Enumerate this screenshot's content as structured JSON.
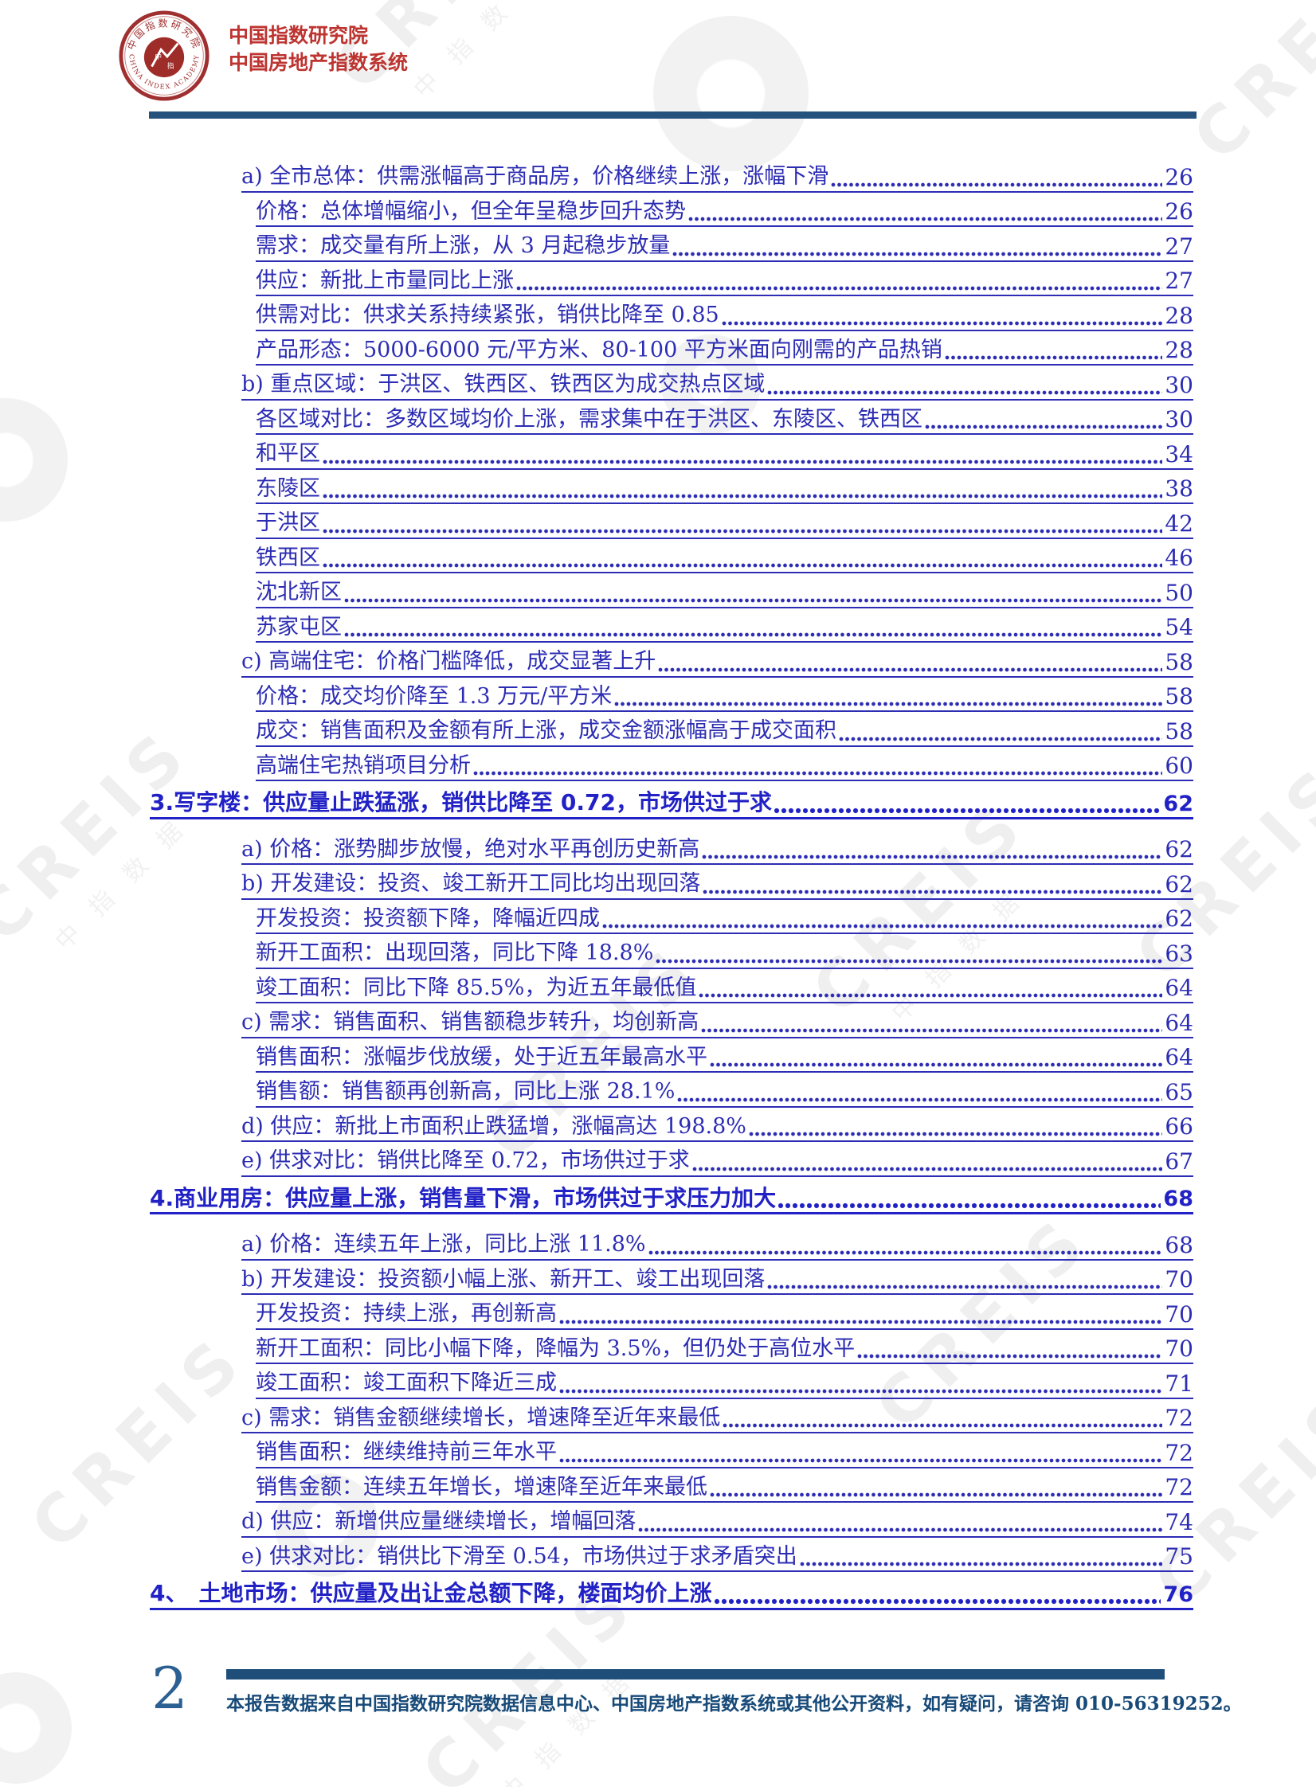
{
  "header": {
    "org_name": "中国指数研究院",
    "system_name": "中国房地产指数系统",
    "logo": {
      "arc_top_text": "中国指数研究院",
      "arc_bottom_text": "CHINA INDEX ACADEMY",
      "center_char_1": "中",
      "center_char_2": "指"
    }
  },
  "toc": {
    "entries": [
      {
        "level": "item",
        "text": "a) 全市总体：供需涨幅高于商品房，价格继续上涨，涨幅下滑",
        "page": "26"
      },
      {
        "level": "sub",
        "text": "价格：总体增幅缩小，但全年呈稳步回升态势",
        "page": "26"
      },
      {
        "level": "sub",
        "text": "需求：成交量有所上涨，从 3 月起稳步放量",
        "page": "27"
      },
      {
        "level": "sub",
        "text": "供应：新批上市量同比上涨",
        "page": "27"
      },
      {
        "level": "sub",
        "text": "供需对比：供求关系持续紧张，销供比降至 0.85",
        "page": "28"
      },
      {
        "level": "sub",
        "text": "产品形态：5000-6000 元/平方米、80-100 平方米面向刚需的产品热销",
        "page": "28"
      },
      {
        "level": "item",
        "text": "b) 重点区域：于洪区、铁西区、铁西区为成交热点区域",
        "page": "30"
      },
      {
        "level": "sub",
        "text": "各区域对比：多数区域均价上涨，需求集中在于洪区、东陵区、铁西区",
        "page": "30"
      },
      {
        "level": "sub",
        "text": "和平区",
        "page": "34"
      },
      {
        "level": "sub",
        "text": "东陵区",
        "page": "38"
      },
      {
        "level": "sub",
        "text": "于洪区",
        "page": "42"
      },
      {
        "level": "sub",
        "text": "铁西区",
        "page": "46"
      },
      {
        "level": "sub",
        "text": "沈北新区",
        "page": "50"
      },
      {
        "level": "sub",
        "text": "苏家屯区",
        "page": "54"
      },
      {
        "level": "item",
        "text": "c) 高端住宅：价格门槛降低，成交显著上升",
        "page": "58"
      },
      {
        "level": "sub",
        "text": "价格：成交均价降至 1.3 万元/平方米",
        "page": "58"
      },
      {
        "level": "sub",
        "text": "成交：销售面积及金额有所上涨，成交金额涨幅高于成交面积",
        "page": "58"
      },
      {
        "level": "sub",
        "text": "高端住宅热销项目分析",
        "page": "60"
      },
      {
        "level": "section",
        "text": "3.写字楼：供应量止跌猛涨，销供比降至 0.72，市场供过于求",
        "page": "62"
      },
      {
        "level": "item",
        "text": "a) 价格：涨势脚步放慢，绝对水平再创历史新高",
        "page": "62"
      },
      {
        "level": "item",
        "text": "b) 开发建设：投资、竣工新开工同比均出现回落",
        "page": "62"
      },
      {
        "level": "sub",
        "text": "开发投资：投资额下降，降幅近四成",
        "page": "62"
      },
      {
        "level": "sub",
        "text": "新开工面积：出现回落，同比下降 18.8%",
        "page": "63"
      },
      {
        "level": "sub",
        "text": "竣工面积：同比下降 85.5%，为近五年最低值",
        "page": "64"
      },
      {
        "level": "item",
        "text": "c) 需求：销售面积、销售额稳步转升，均创新高",
        "page": "64"
      },
      {
        "level": "sub",
        "text": "销售面积：涨幅步伐放缓，处于近五年最高水平",
        "page": "64"
      },
      {
        "level": "sub",
        "text": "销售额：销售额再创新高，同比上涨 28.1%",
        "page": "65"
      },
      {
        "level": "item",
        "text": "d) 供应：新批上市面积止跌猛增，涨幅高达 198.8%",
        "page": "66"
      },
      {
        "level": "item",
        "text": "e) 供求对比：销供比降至 0.72，市场供过于求",
        "page": "67"
      },
      {
        "level": "section",
        "text": "4.商业用房：供应量上涨，销售量下滑，市场供过于求压力加大",
        "page": "68"
      },
      {
        "level": "item",
        "text": "a) 价格：连续五年上涨，同比上涨 11.8%",
        "page": "68"
      },
      {
        "level": "item",
        "text": "b) 开发建设：投资额小幅上涨、新开工、竣工出现回落",
        "page": "70"
      },
      {
        "level": "sub",
        "text": "开发投资：持续上涨，再创新高",
        "page": "70"
      },
      {
        "level": "sub",
        "text": "新开工面积：同比小幅下降，降幅为 3.5%，但仍处于高位水平",
        "page": "70"
      },
      {
        "level": "sub",
        "text": "竣工面积：竣工面积下降近三成",
        "page": "71"
      },
      {
        "level": "item",
        "text": "c) 需求：销售金额继续增长，增速降至近年来最低",
        "page": "72"
      },
      {
        "level": "sub",
        "text": "销售面积：继续维持前三年水平",
        "page": "72"
      },
      {
        "level": "sub",
        "text": "销售金额：连续五年增长，增速降至近年来最低",
        "page": "72"
      },
      {
        "level": "item",
        "text": "d) 供应：新增供应量继续增长，增幅回落",
        "page": "74"
      },
      {
        "level": "item",
        "text": "e) 供求对比：销供比下滑至 0.54，市场供过于求矛盾突出",
        "page": "75"
      },
      {
        "level": "section",
        "text": "4、　土地市场：供应量及出让金总额下降，楼面均价上涨",
        "page": "76"
      }
    ]
  },
  "watermark": {
    "text": "CREIS",
    "subtext": "中指数据"
  },
  "footer": {
    "page_number": "2",
    "note": "本报告数据来自中国指数研究院数据信息中心、中国房地产指数系统或其他公开资料，如有疑问，请咨询 010-56319252。"
  }
}
